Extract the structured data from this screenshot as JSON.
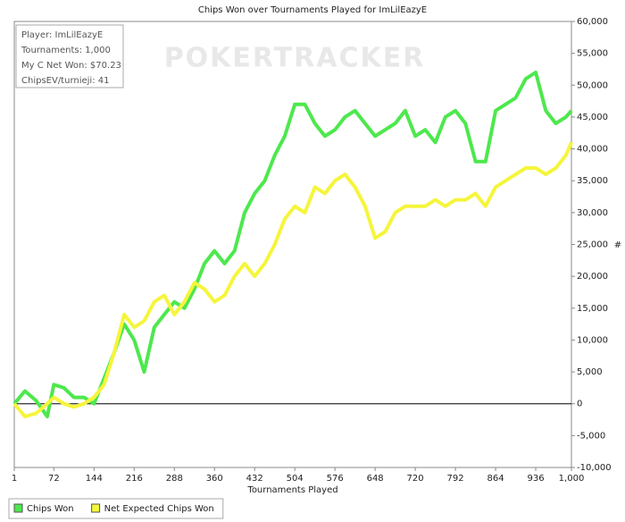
{
  "chart_data": {
    "type": "line",
    "title": "Chips Won over Tournaments Played for ImLilEazyE",
    "watermark": "POKERTRACKER",
    "annotations": [
      "Player: ImLilEazyE",
      "Tournaments: 1,000",
      "My C Net Won: $70.23",
      "ChipsEV/turnieji: 41"
    ],
    "x_label": "Tournaments Played",
    "y_label": "#",
    "x": [
      1,
      20,
      40,
      60,
      72,
      90,
      108,
      126,
      144,
      162,
      180,
      198,
      216,
      234,
      252,
      270,
      288,
      306,
      324,
      342,
      360,
      378,
      396,
      414,
      432,
      450,
      468,
      486,
      504,
      522,
      540,
      558,
      576,
      594,
      612,
      630,
      648,
      666,
      684,
      702,
      720,
      738,
      756,
      774,
      792,
      810,
      828,
      846,
      864,
      882,
      900,
      918,
      936,
      954,
      972,
      990,
      1000
    ],
    "series": [
      {
        "name": "Chips Won",
        "color": "#4de84d",
        "values": [
          0,
          2000,
          500,
          -2000,
          3000,
          2500,
          1000,
          1000,
          0,
          4000,
          8000,
          12500,
          10000,
          5000,
          12000,
          14000,
          16000,
          15000,
          18000,
          22000,
          24000,
          22000,
          24000,
          30000,
          33000,
          35000,
          39000,
          42000,
          47000,
          47000,
          44000,
          42000,
          43000,
          45000,
          46000,
          44000,
          42000,
          43000,
          44000,
          46000,
          42000,
          43000,
          41000,
          45000,
          46000,
          44000,
          38000,
          38000,
          46000,
          47000,
          48000,
          51000,
          52000,
          46000,
          44000,
          45000,
          46000
        ]
      },
      {
        "name": "Net Expected Chips Won",
        "color": "#f5f53c",
        "values": [
          0,
          -2000,
          -1500,
          0,
          1000,
          0,
          -500,
          0,
          1000,
          3000,
          8000,
          14000,
          12000,
          13000,
          16000,
          17000,
          14000,
          16000,
          19000,
          18000,
          16000,
          17000,
          20000,
          22000,
          20000,
          22000,
          25000,
          29000,
          31000,
          30000,
          34000,
          33000,
          35000,
          36000,
          34000,
          31000,
          26000,
          27000,
          30000,
          31000,
          31000,
          31000,
          32000,
          31000,
          32000,
          32000,
          33000,
          31000,
          34000,
          35000,
          36000,
          37000,
          37000,
          36000,
          37000,
          39000,
          41000
        ]
      }
    ],
    "xlim": [
      1,
      1000
    ],
    "xticks": [
      1,
      72,
      144,
      216,
      288,
      360,
      432,
      504,
      576,
      648,
      720,
      792,
      864,
      936,
      {
        "value": 1000,
        "label": "1,000"
      }
    ],
    "ylim": [
      -10000,
      60000
    ],
    "yticks": [
      {
        "value": -10000,
        "label": "-10,000"
      },
      {
        "value": -5000,
        "label": "-5,000"
      },
      0,
      {
        "value": 5000,
        "label": "5,000"
      },
      {
        "value": 10000,
        "label": "10,000"
      },
      {
        "value": 15000,
        "label": "15,000"
      },
      {
        "value": 20000,
        "label": "20,000"
      },
      {
        "value": 25000,
        "label": "25,000"
      },
      {
        "value": 30000,
        "label": "30,000"
      },
      {
        "value": 35000,
        "label": "35,000"
      },
      {
        "value": 40000,
        "label": "40,000"
      },
      {
        "value": 45000,
        "label": "45,000"
      },
      {
        "value": 50000,
        "label": "50,000"
      },
      {
        "value": 55000,
        "label": "55,000"
      },
      {
        "value": 60000,
        "label": "60,000"
      }
    ],
    "grid": false,
    "legend": "bottom-left"
  }
}
